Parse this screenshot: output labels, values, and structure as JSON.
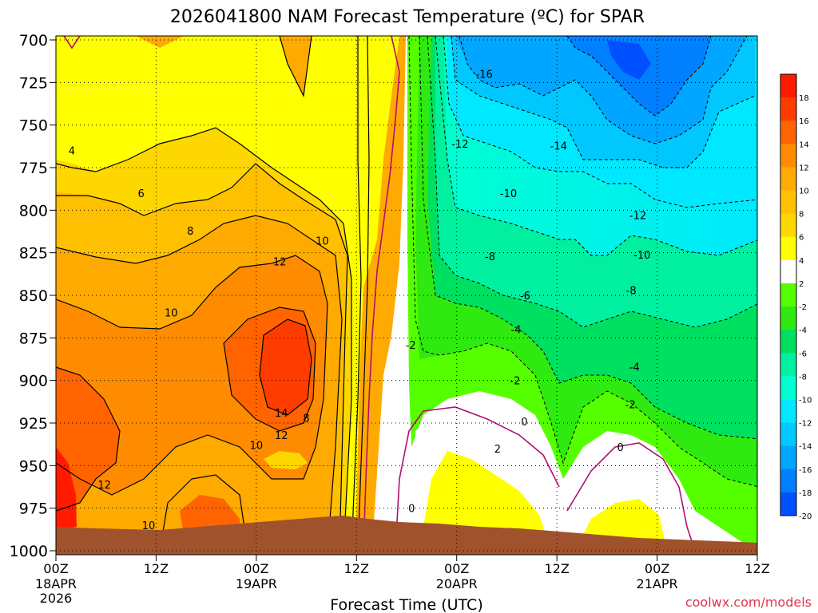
{
  "chart_data": {
    "type": "heatmap",
    "title": "2026041800 NAM Forecast Temperature (ºC) for SPAR",
    "xlabel": "Forecast Time (UTC)",
    "ylabel": "",
    "credit": "coolwx.com/models",
    "y_axis": {
      "range": [
        700,
        1000
      ],
      "ticks": [
        "700",
        "725",
        "750",
        "775",
        "800",
        "825",
        "850",
        "875",
        "900",
        "925",
        "950",
        "975",
        "1000"
      ]
    },
    "x_axis": {
      "range_hours": [
        0,
        84
      ],
      "ticks": [
        {
          "hour": 0,
          "label": "00Z",
          "sub": "18APR",
          "sub2": "2026"
        },
        {
          "hour": 12,
          "label": "12Z",
          "sub": "",
          "sub2": ""
        },
        {
          "hour": 24,
          "label": "00Z",
          "sub": "19APR",
          "sub2": ""
        },
        {
          "hour": 36,
          "label": "12Z",
          "sub": "",
          "sub2": ""
        },
        {
          "hour": 48,
          "label": "00Z",
          "sub": "20APR",
          "sub2": ""
        },
        {
          "hour": 60,
          "label": "12Z",
          "sub": "",
          "sub2": ""
        },
        {
          "hour": 72,
          "label": "00Z",
          "sub": "21APR",
          "sub2": ""
        },
        {
          "hour": 84,
          "label": "12Z",
          "sub": "",
          "sub2": ""
        }
      ]
    },
    "colorbar": {
      "labels": [
        "18",
        "16",
        "14",
        "12",
        "10",
        "8",
        "6",
        "4",
        "2",
        "-2",
        "-4",
        "-6",
        "-8",
        "-10",
        "-12",
        "-14",
        "-16",
        "-18",
        "-20"
      ],
      "colors": [
        "#ff1a00",
        "#ff3c00",
        "#ff6400",
        "#ff8c00",
        "#ffaa00",
        "#ffc000",
        "#ffd700",
        "#ffff00",
        "#ffffff",
        "#55ff00",
        "#2eea10",
        "#00e060",
        "#00f0a0",
        "#00ffd0",
        "#00e8ff",
        "#00c8ff",
        "#00a6ff",
        "#0080ff",
        "#0050ff"
      ]
    },
    "series": [
      {
        "name": "Temperature (ºC) column, hour 0",
        "pressure_hPa": [
          700,
          750,
          800,
          850,
          900,
          950,
          975
        ],
        "values": [
          1,
          3,
          7,
          10,
          12,
          14,
          17
        ]
      },
      {
        "name": "Temperature (ºC) column, hour 12",
        "pressure_hPa": [
          700,
          750,
          800,
          850,
          900,
          950,
          975
        ],
        "values": [
          3,
          5,
          8,
          10,
          11,
          12,
          14
        ]
      },
      {
        "name": "Temperature (ºC) column, hour 24",
        "pressure_hPa": [
          700,
          750,
          800,
          850,
          900,
          950,
          975
        ],
        "values": [
          4,
          6,
          9,
          13,
          15,
          8,
          12
        ]
      },
      {
        "name": "Temperature (ºC) column, hour 36",
        "pressure_hPa": [
          700,
          750,
          800,
          850,
          900,
          950,
          975
        ],
        "values": [
          3,
          6,
          10,
          12,
          11,
          10,
          10
        ]
      },
      {
        "name": "Temperature (ºC) column, hour 48",
        "pressure_hPa": [
          700,
          750,
          800,
          850,
          900,
          950,
          975
        ],
        "values": [
          -14,
          -11,
          -8,
          -5,
          -1,
          3,
          4
        ]
      },
      {
        "name": "Temperature (ºC) column, hour 60",
        "pressure_hPa": [
          700,
          750,
          800,
          850,
          900,
          950,
          975
        ],
        "values": [
          -16,
          -12,
          -9,
          -6,
          -3,
          -1,
          2
        ]
      },
      {
        "name": "Temperature (ºC) column, hour 72",
        "pressure_hPa": [
          700,
          750,
          800,
          850,
          900,
          950,
          975
        ],
        "values": [
          -18,
          -15,
          -12,
          -9,
          -4,
          -1,
          3
        ]
      },
      {
        "name": "Temperature (ºC) column, hour 84",
        "pressure_hPa": [
          700,
          750,
          800,
          850,
          900,
          950,
          975
        ],
        "values": [
          -16,
          -13,
          -11,
          -8,
          -5,
          -3,
          -1
        ]
      }
    ],
    "contour_labels": [
      {
        "text": "4",
        "hour": 1.9,
        "p": 765
      },
      {
        "text": "6",
        "hour": 10.2,
        "p": 790
      },
      {
        "text": "8",
        "hour": 16.1,
        "p": 812
      },
      {
        "text": "10",
        "hour": 31.9,
        "p": 818
      },
      {
        "text": "12",
        "hour": 26.8,
        "p": 830
      },
      {
        "text": "10",
        "hour": 13.8,
        "p": 860
      },
      {
        "text": "12",
        "hour": 5.8,
        "p": 961
      },
      {
        "text": "10",
        "hour": 11.1,
        "p": 985
      },
      {
        "text": "14",
        "hour": 27.0,
        "p": 919
      },
      {
        "text": "12",
        "hour": 27.0,
        "p": 932
      },
      {
        "text": "8",
        "hour": 30.0,
        "p": 922
      },
      {
        "text": "10",
        "hour": 24.0,
        "p": 938
      },
      {
        "text": "-2",
        "hour": 42.5,
        "p": 879
      },
      {
        "text": "0",
        "hour": 42.6,
        "p": 975
      },
      {
        "text": "-16",
        "hour": 51.3,
        "p": 720
      },
      {
        "text": "-14",
        "hour": 60.2,
        "p": 762
      },
      {
        "text": "-12",
        "hour": 48.4,
        "p": 761
      },
      {
        "text": "-10",
        "hour": 54.2,
        "p": 790
      },
      {
        "text": "-12",
        "hour": 69.7,
        "p": 803
      },
      {
        "text": "-8",
        "hour": 52.0,
        "p": 827
      },
      {
        "text": "-10",
        "hour": 70.2,
        "p": 826
      },
      {
        "text": "-8",
        "hour": 68.9,
        "p": 847
      },
      {
        "text": "-6",
        "hour": 56.2,
        "p": 850
      },
      {
        "text": "-4",
        "hour": 55.1,
        "p": 870
      },
      {
        "text": "-4",
        "hour": 69.3,
        "p": 892
      },
      {
        "text": "-2",
        "hour": 55.0,
        "p": 900
      },
      {
        "text": "-2",
        "hour": 68.8,
        "p": 914
      },
      {
        "text": "0",
        "hour": 56.1,
        "p": 924
      },
      {
        "text": "0",
        "hour": 67.6,
        "p": 939
      },
      {
        "text": "2",
        "hour": 52.9,
        "p": 940
      }
    ]
  }
}
